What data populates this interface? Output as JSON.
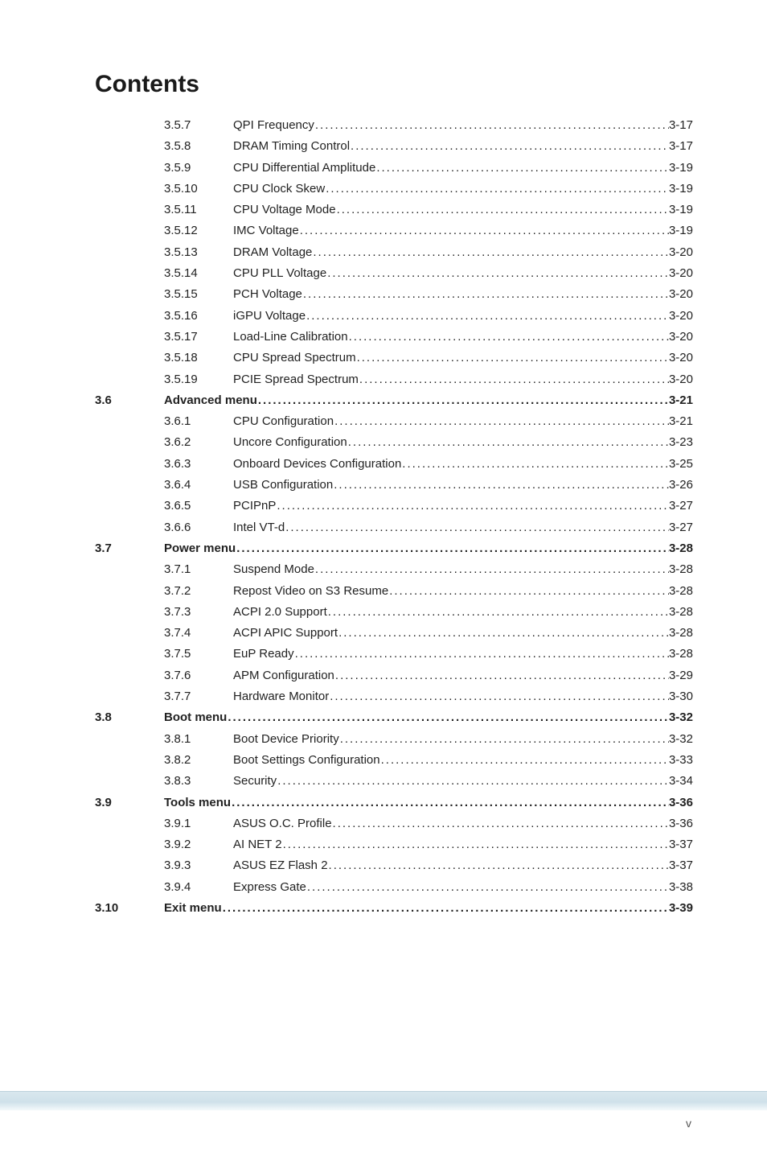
{
  "title": "Contents",
  "footer_roman": "v",
  "toc": [
    {
      "level": 2,
      "num": "3.5.7",
      "label": "QPI Frequency",
      "page": "3-17",
      "bold": false
    },
    {
      "level": 2,
      "num": "3.5.8",
      "label": "DRAM Timing Control ",
      "page": "3-17",
      "bold": false
    },
    {
      "level": 2,
      "num": "3.5.9",
      "label": "CPU Differential Amplitude",
      "page": "3-19",
      "bold": false
    },
    {
      "level": 2,
      "num": "3.5.10",
      "label": "CPU Clock Skew",
      "page": "3-19",
      "bold": false
    },
    {
      "level": 2,
      "num": "3.5.11",
      "label": "CPU Voltage Mode ",
      "page": "3-19",
      "bold": false
    },
    {
      "level": 2,
      "num": "3.5.12",
      "label": "IMC Voltage ",
      "page": "3-19",
      "bold": false
    },
    {
      "level": 2,
      "num": "3.5.13",
      "label": "DRAM Voltage ",
      "page": "3-20",
      "bold": false
    },
    {
      "level": 2,
      "num": "3.5.14",
      "label": "CPU PLL Voltage ",
      "page": "3-20",
      "bold": false
    },
    {
      "level": 2,
      "num": "3.5.15",
      "label": "PCH Voltage",
      "page": "3-20",
      "bold": false
    },
    {
      "level": 2,
      "num": "3.5.16",
      "label": "iGPU Voltage",
      "page": "3-20",
      "bold": false
    },
    {
      "level": 2,
      "num": "3.5.17",
      "label": "Load-Line Calibration",
      "page": "3-20",
      "bold": false
    },
    {
      "level": 2,
      "num": "3.5.18",
      "label": "CPU Spread Spectrum",
      "page": "3-20",
      "bold": false
    },
    {
      "level": 2,
      "num": "3.5.19",
      "label": "PCIE Spread Spectrum",
      "page": "3-20",
      "bold": false
    },
    {
      "level": 1,
      "num": "3.6",
      "label": "Advanced menu ",
      "page": "3-21",
      "bold": true
    },
    {
      "level": 2,
      "num": "3.6.1",
      "label": "CPU Configuration ",
      "page": "3-21",
      "bold": false
    },
    {
      "level": 2,
      "num": "3.6.2",
      "label": "Uncore Configuration ",
      "page": "3-23",
      "bold": false
    },
    {
      "level": 2,
      "num": "3.6.3",
      "label": "Onboard Devices Configuration",
      "page": "3-25",
      "bold": false
    },
    {
      "level": 2,
      "num": "3.6.4",
      "label": "USB Configuration ",
      "page": "3-26",
      "bold": false
    },
    {
      "level": 2,
      "num": "3.6.5",
      "label": "PCIPnP ",
      "page": "3-27",
      "bold": false
    },
    {
      "level": 2,
      "num": "3.6.6",
      "label": "Intel VT-d",
      "page": "3-27",
      "bold": false
    },
    {
      "level": 1,
      "num": "3.7",
      "label": "Power menu",
      "page": "3-28",
      "bold": true
    },
    {
      "level": 2,
      "num": "3.7.1",
      "label": "Suspend Mode",
      "page": "3-28",
      "bold": false
    },
    {
      "level": 2,
      "num": "3.7.2",
      "label": "Repost Video on S3 Resume",
      "page": "3-28",
      "bold": false
    },
    {
      "level": 2,
      "num": "3.7.3",
      "label": "ACPI 2.0 Support ",
      "page": "3-28",
      "bold": false
    },
    {
      "level": 2,
      "num": "3.7.4",
      "label": "ACPI APIC Support",
      "page": "3-28",
      "bold": false
    },
    {
      "level": 2,
      "num": "3.7.5",
      "label": "EuP Ready",
      "page": "3-28",
      "bold": false
    },
    {
      "level": 2,
      "num": "3.7.6",
      "label": "APM Configuration",
      "page": "3-29",
      "bold": false
    },
    {
      "level": 2,
      "num": "3.7.7",
      "label": "Hardware Monitor",
      "page": "3-30",
      "bold": false
    },
    {
      "level": 1,
      "num": "3.8",
      "label": "Boot menu ",
      "page": "3-32",
      "bold": true
    },
    {
      "level": 2,
      "num": "3.8.1",
      "label": "Boot Device Priority",
      "page": "3-32",
      "bold": false
    },
    {
      "level": 2,
      "num": "3.8.2",
      "label": "Boot Settings Configuration ",
      "page": "3-33",
      "bold": false
    },
    {
      "level": 2,
      "num": "3.8.3",
      "label": "Security ",
      "page": "3-34",
      "bold": false
    },
    {
      "level": 1,
      "num": "3.9",
      "label": "Tools menu ",
      "page": "3-36",
      "bold": true
    },
    {
      "level": 2,
      "num": "3.9.1",
      "label": "ASUS O.C. Profile",
      "page": "3-36",
      "bold": false
    },
    {
      "level": 2,
      "num": "3.9.2",
      "label": "AI NET 2",
      "page": "3-37",
      "bold": false
    },
    {
      "level": 2,
      "num": "3.9.3",
      "label": "ASUS EZ Flash 2",
      "page": "3-37",
      "bold": false
    },
    {
      "level": 2,
      "num": "3.9.4",
      "label": "Express Gate ",
      "page": "3-38",
      "bold": false
    },
    {
      "level": 1,
      "num": "3.10",
      "label": "Exit menu",
      "page": "3-39",
      "bold": true
    }
  ]
}
